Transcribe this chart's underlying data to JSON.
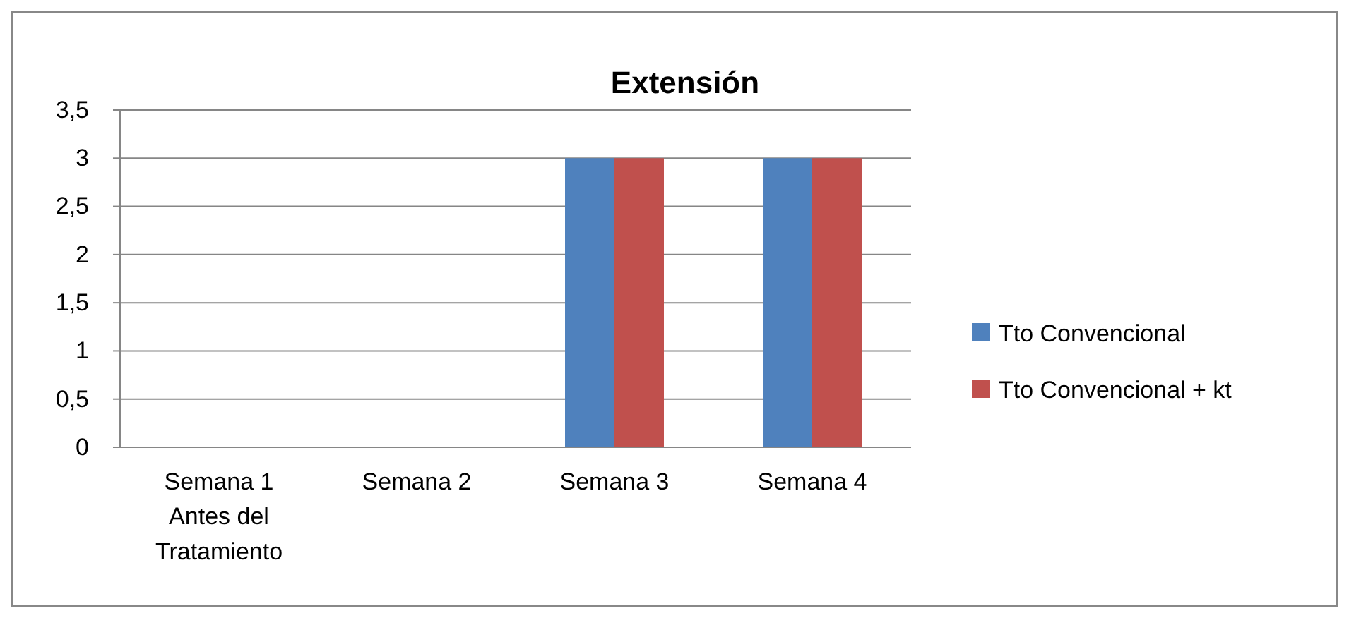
{
  "chart_data": {
    "type": "bar",
    "title": "Extensión",
    "categories": [
      "Semana 1 Antes del Tratamiento",
      "Semana 2",
      "Semana 3",
      "Semana 4"
    ],
    "series": [
      {
        "name": "Tto Convencional",
        "color": "#4f81bd",
        "values": [
          0,
          0,
          3,
          3
        ]
      },
      {
        "name": "Tto Convencional + kt",
        "color": "#c0504d",
        "values": [
          0,
          0,
          3,
          3
        ]
      }
    ],
    "ylim": [
      0,
      3.5
    ],
    "yticks": [
      {
        "value": 0,
        "label": "0"
      },
      {
        "value": 0.5,
        "label": "0,5"
      },
      {
        "value": 1,
        "label": "1"
      },
      {
        "value": 1.5,
        "label": "1,5"
      },
      {
        "value": 2,
        "label": "2"
      },
      {
        "value": 2.5,
        "label": "2,5"
      },
      {
        "value": 3,
        "label": "3"
      },
      {
        "value": 3.5,
        "label": "3,5"
      }
    ],
    "grid": "y",
    "legend": "right"
  }
}
